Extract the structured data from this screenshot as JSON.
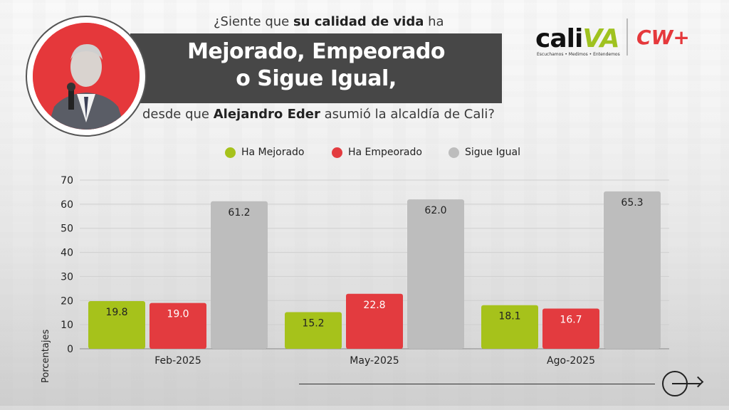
{
  "header": {
    "question_pre": "¿Siente que ",
    "question_bold": "su calidad de vida",
    "question_post": " ha",
    "banner_line1": "Mejorado, Empeorado",
    "banner_line2": "o Sigue Igual,",
    "sub_pre": "desde que ",
    "sub_bold": "Alejandro Eder",
    "sub_post": " asumió la alcaldía de Cali?"
  },
  "logos": {
    "cali_text": "cali",
    "va_text": "VA",
    "tagline": "Escuchamos • Medimos • Entendemos",
    "cw_text": "CW+"
  },
  "colors": {
    "mejorado": "#a6c21b",
    "empeorado": "#e33b3f",
    "igual": "#bdbdbd",
    "banner": "#474747",
    "accent_red": "#e5383b"
  },
  "chart_data": {
    "type": "bar",
    "ylabel": "Porcentajes",
    "xlabel": "",
    "ylim": [
      0,
      70
    ],
    "yticks": [
      0,
      10,
      20,
      30,
      40,
      50,
      60,
      70
    ],
    "grid": true,
    "legend_position": "top-center",
    "categories": [
      "Feb-2025",
      "May-2025",
      "Ago-2025"
    ],
    "series": [
      {
        "name": "Ha Mejorado",
        "color_key": "mejorado",
        "values": [
          19.8,
          15.2,
          18.1
        ],
        "labels": [
          "19.8",
          "15.2",
          "18.1"
        ]
      },
      {
        "name": "Ha Empeorado",
        "color_key": "empeorado",
        "values": [
          19.0,
          22.8,
          16.7
        ],
        "labels": [
          "19.0",
          "22.8",
          "16.7"
        ]
      },
      {
        "name": "Sigue Igual",
        "color_key": "igual",
        "values": [
          61.2,
          62.0,
          65.3
        ],
        "labels": [
          "61.2",
          "62.0",
          "65.3"
        ]
      }
    ]
  },
  "footer": {
    "arrow_icon": "arrow-right-circle-icon"
  }
}
